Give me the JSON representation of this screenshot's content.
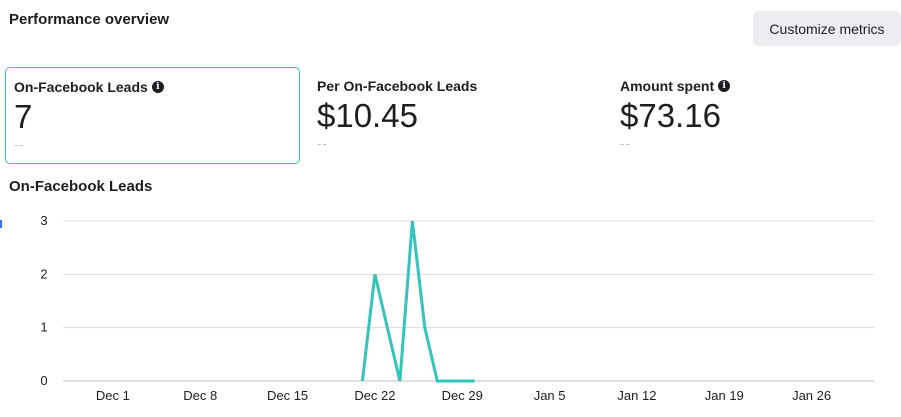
{
  "header": {
    "title": "Performance overview",
    "customize_label": "Customize metrics"
  },
  "metrics": [
    {
      "label": "On-Facebook Leads",
      "value": "7",
      "compare": "--",
      "has_info": true,
      "selected": true
    },
    {
      "label": "Per On-Facebook Leads",
      "value": "$10.45",
      "compare": "--",
      "has_info": false,
      "selected": false
    },
    {
      "label": "Amount spent",
      "value": "$73.16",
      "compare": "--",
      "has_info": true,
      "selected": false
    }
  ],
  "chart_data": {
    "type": "line",
    "title": "On-Facebook Leads",
    "xlabel": "",
    "ylabel": "",
    "ylim": [
      0,
      3
    ],
    "y_ticks": [
      "0",
      "1",
      "2",
      "3"
    ],
    "x_tick_labels": [
      "Dec 1",
      "Dec 8",
      "Dec 15",
      "Dec 22",
      "Dec 29",
      "Jan 5",
      "Jan 12",
      "Jan 19",
      "Jan 26"
    ],
    "x_tick_dates": [
      "2023-12-01",
      "2023-12-08",
      "2023-12-15",
      "2023-12-22",
      "2023-12-29",
      "2024-01-05",
      "2024-01-12",
      "2024-01-19",
      "2024-01-26"
    ],
    "xlim": [
      "2023-11-27",
      "2024-01-31"
    ],
    "grid": true,
    "line_color": "#35c3bd",
    "series": [
      {
        "x": [
          "2023-12-21",
          "2023-12-22",
          "2023-12-23",
          "2023-12-24",
          "2023-12-25",
          "2023-12-26",
          "2023-12-27",
          "2023-12-28",
          "2023-12-29",
          "2023-12-30"
        ],
        "values": [
          0,
          2,
          1,
          0,
          3,
          1,
          0,
          0,
          0,
          0
        ]
      }
    ]
  }
}
